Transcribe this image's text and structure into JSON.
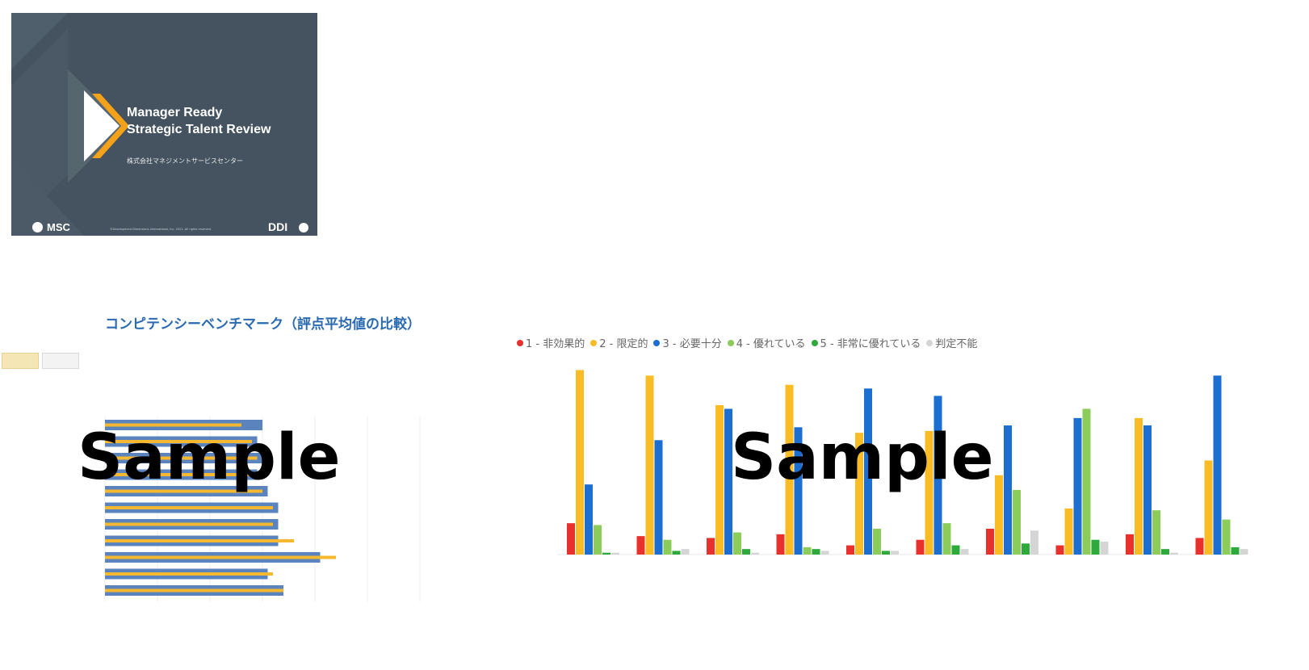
{
  "cover": {
    "title_line1": "Manager Ready",
    "title_line2": "Strategic Talent Review",
    "company": "株式会社マネジメントサービスセンター",
    "msc_logo": "MSC",
    "copyright": "©Development Dimensions International, Inc. 2021. All rights reserved.",
    "ddi_logo": "DDI",
    "background_color": "#44535f",
    "accent_color": "#f5a21b"
  },
  "watermark": {
    "text": "Sample"
  },
  "left_chart": {
    "title": "コンピテンシーベンチマーク（評点平均値の比較）",
    "button_primary": "",
    "button_secondary": "",
    "chart_data": {
      "type": "bar",
      "orientation": "horizontal",
      "series": [
        {
          "name": "",
          "color": "#5b84be",
          "values": [
            3.0,
            2.9,
            3.0,
            2.9,
            3.1,
            3.3,
            3.3,
            3.3,
            4.1,
            3.1,
            3.4
          ]
        },
        {
          "name": "",
          "color": "#f5b82e",
          "values": [
            2.6,
            2.8,
            2.9,
            2.8,
            3.0,
            3.2,
            3.2,
            3.6,
            4.4,
            3.2,
            3.4
          ]
        }
      ],
      "xlim": [
        0,
        6
      ],
      "grid": true
    }
  },
  "right_chart": {
    "chart_data": {
      "type": "bar",
      "legend_position": "top-left",
      "series": [
        {
          "name": "1 - 非効果的",
          "color": "#e8302c",
          "values": [
            17,
            10,
            9,
            11,
            5,
            8,
            14,
            5,
            11,
            9
          ]
        },
        {
          "name": "2 - 限定的",
          "color": "#f9bc24",
          "values": [
            100,
            97,
            81,
            92,
            66,
            67,
            43,
            25,
            74,
            51
          ]
        },
        {
          "name": "3 - 必要十分",
          "color": "#1c6fd1",
          "values": [
            38,
            62,
            79,
            69,
            90,
            86,
            70,
            74,
            70,
            97
          ]
        },
        {
          "name": "4 - 優れている",
          "color": "#8ccc5a",
          "values": [
            16,
            8,
            12,
            4,
            14,
            17,
            35,
            79,
            24,
            19
          ]
        },
        {
          "name": "5 - 非常に優れている",
          "color": "#2eaa3c",
          "values": [
            1,
            2,
            3,
            3,
            2,
            5,
            6,
            8,
            3,
            4
          ]
        },
        {
          "name": "判定不能",
          "color": "#d5d5d5",
          "values": [
            1,
            3,
            1,
            2,
            2,
            3,
            13,
            7,
            1,
            3
          ]
        }
      ],
      "ylim": [
        0,
        105
      ],
      "grid": false
    }
  }
}
